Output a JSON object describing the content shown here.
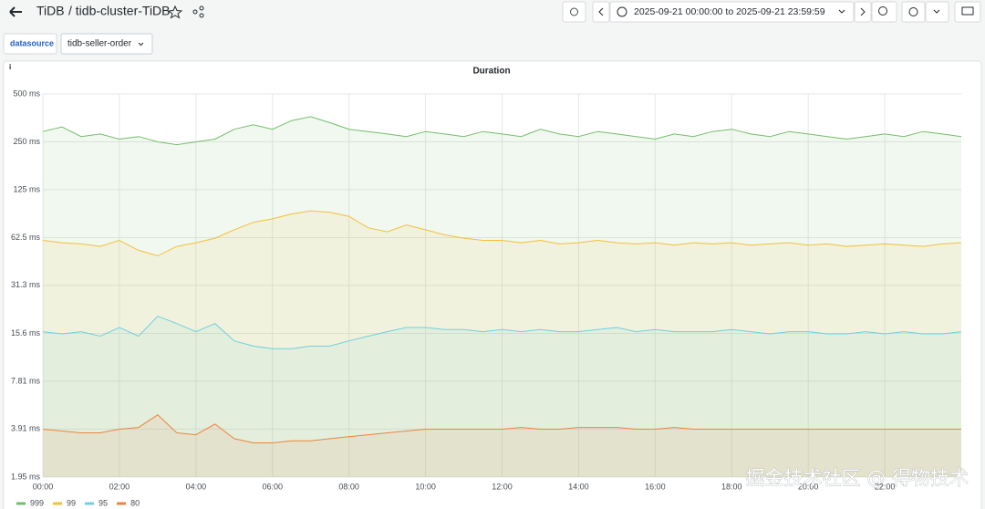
{
  "header": {
    "title": "TiDB",
    "dashboard": "/ tidb-cluster-TiDB",
    "time_range": "2025-09-21 00:00:00 to 2025-09-21 23:59:59"
  },
  "variables": [
    {
      "label": "datasource",
      "value": "tidb-seller-order"
    }
  ],
  "watermark": "掘金技术社区 @ 得物技术",
  "chart_data": {
    "type": "line",
    "title": "Duration",
    "log_scale": 2,
    "grid": true,
    "fill_area": true,
    "legend": "bottom-left",
    "x": [
      0,
      0.5,
      1,
      1.5,
      2,
      2.5,
      3,
      3.5,
      4,
      4.5,
      5,
      5.5,
      6,
      6.5,
      7,
      7.5,
      8,
      8.5,
      9,
      9.5,
      10,
      10.5,
      11,
      11.5,
      12,
      12.5,
      13,
      13.5,
      14,
      14.5,
      15,
      15.5,
      16,
      16.5,
      17,
      17.5,
      18,
      18.5,
      19,
      19.5,
      20,
      20.5,
      21,
      21.5,
      22,
      22.5,
      23,
      23.5,
      24
    ],
    "xlim": [
      0,
      24
    ],
    "xticks": [
      {
        "value": 0,
        "label": "00:00"
      },
      {
        "value": 2,
        "label": "02:00"
      },
      {
        "value": 4,
        "label": "04:00"
      },
      {
        "value": 6,
        "label": "06:00"
      },
      {
        "value": 8,
        "label": "08:00"
      },
      {
        "value": 10,
        "label": "10:00"
      },
      {
        "value": 12,
        "label": "12:00"
      },
      {
        "value": 14,
        "label": "14:00"
      },
      {
        "value": 16,
        "label": "16:00"
      },
      {
        "value": 18,
        "label": "18:00"
      },
      {
        "value": 20,
        "label": "20:00"
      },
      {
        "value": 22,
        "label": "22:00"
      }
    ],
    "ylim": [
      1.95,
      500
    ],
    "yticks": [
      {
        "value": 1.95,
        "label": "1.95 ms"
      },
      {
        "value": 3.91,
        "label": "3.91 ms"
      },
      {
        "value": 7.81,
        "label": "7.81 ms"
      },
      {
        "value": 15.6,
        "label": "15.6 ms"
      },
      {
        "value": 31.3,
        "label": "31.3 ms"
      },
      {
        "value": 62.5,
        "label": "62.5 ms"
      },
      {
        "value": 125,
        "label": "125 ms"
      },
      {
        "value": 250,
        "label": "250 ms"
      },
      {
        "value": 500,
        "label": "500 ms"
      }
    ],
    "series": [
      {
        "name": "999",
        "color": "#73bf69",
        "values": [
          290,
          310,
          270,
          280,
          260,
          270,
          250,
          240,
          250,
          260,
          300,
          320,
          300,
          340,
          360,
          330,
          300,
          290,
          280,
          270,
          290,
          280,
          270,
          290,
          280,
          270,
          300,
          280,
          270,
          290,
          280,
          270,
          260,
          280,
          270,
          290,
          300,
          280,
          270,
          290,
          280,
          270,
          260,
          270,
          280,
          270,
          290,
          280,
          270
        ]
      },
      {
        "name": "99",
        "color": "#f2c037",
        "values": [
          60,
          58,
          57,
          55,
          60,
          52,
          48,
          55,
          58,
          62,
          70,
          78,
          82,
          88,
          92,
          90,
          85,
          72,
          68,
          75,
          70,
          65,
          62,
          60,
          60,
          58,
          60,
          57,
          58,
          60,
          58,
          57,
          58,
          56,
          58,
          57,
          58,
          56,
          57,
          58,
          56,
          57,
          55,
          56,
          57,
          56,
          55,
          57,
          58
        ]
      },
      {
        "name": "95",
        "color": "#6ed0e0",
        "values": [
          16,
          15.5,
          16,
          15,
          17,
          15,
          20,
          18,
          16,
          18,
          14,
          13,
          12.5,
          12.5,
          13,
          13,
          14,
          15,
          16,
          17,
          17,
          16.5,
          16.5,
          16,
          16.5,
          16,
          16.5,
          16,
          16,
          16.5,
          17,
          16,
          16.5,
          16,
          16,
          16,
          16.5,
          16,
          15.5,
          16,
          16,
          15.5,
          15.5,
          16,
          15.5,
          16,
          15.5,
          15.5,
          16
        ]
      },
      {
        "name": "80",
        "color": "#ef843c",
        "values": [
          3.9,
          3.8,
          3.7,
          3.7,
          3.9,
          4.0,
          4.8,
          3.7,
          3.6,
          4.2,
          3.4,
          3.2,
          3.2,
          3.3,
          3.3,
          3.4,
          3.5,
          3.6,
          3.7,
          3.8,
          3.9,
          3.9,
          3.9,
          3.9,
          3.9,
          4.0,
          3.9,
          3.9,
          4.0,
          4.0,
          4.0,
          3.9,
          3.9,
          4.0,
          3.9,
          3.9,
          3.9,
          3.9,
          3.9,
          3.9,
          3.9,
          3.9,
          3.9,
          3.9,
          3.9,
          3.9,
          3.9,
          3.9,
          3.9
        ]
      }
    ]
  }
}
